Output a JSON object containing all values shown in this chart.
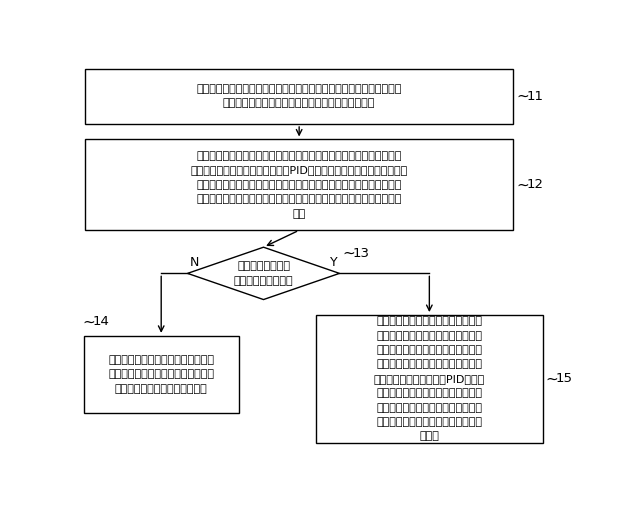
{
  "box1_text": "空调制冷运行，获取实时室内环境温度、设定室内目标温度，实时检测\n空调所在室内的热源并确定热源与空调间的实时距离",
  "box2_text": "计算实时室内环境温度与设定室内目标温度之间的温差，作为实时室内\n温差，根据实时室内温差进行室温PID运算，获得第一频率；根据已知的\n距离与风速的对应关系获取与实时距离对应的风速，作为实时风速；根\n据已知的风速与频率的对应关系获取与实时风速对应的频率，作为第二\n频率",
  "diamond_text": "实时室内环境温度\n小于设定舒适温度？",
  "box4_text": "执行第一控制：选择第一频率与第二\n频率中的较小值作为目标频率，根据\n目标频率控制空调的压缩机运行",
  "box5_text": "执行第二控制：获取空调蒸发器的实\n时盘管温度和设定盘管目标温度，计\n算实时盘管温度与设定盘管目标温度\n之间的温差，作为实时盘管温差，根\n据实时盘管温差进行盘温PID运算，\n获得第三频率，选择第一频率、第二\n频率及第三频率中的较小值作为目标\n频率，根据目标频率控制空调的压缩\n机运行",
  "label11": "11",
  "label12": "12",
  "label13": "13",
  "label14": "14",
  "label15": "15",
  "label_N": "N",
  "label_Y": "Y",
  "box_color": "#ffffff",
  "box_edge_color": "#000000",
  "arrow_color": "#000000",
  "text_color": "#000000",
  "bg_color": "#ffffff",
  "font_size": 8.0,
  "label_font_size": 9.5
}
